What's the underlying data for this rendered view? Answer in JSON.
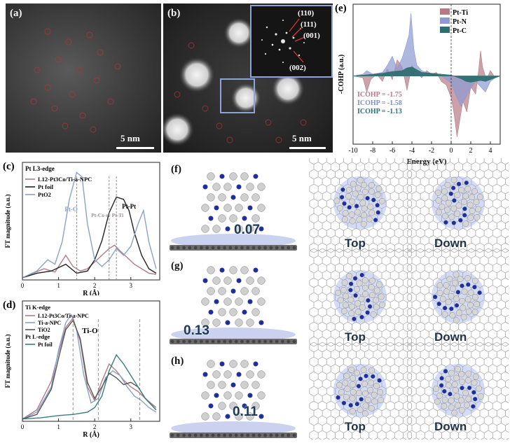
{
  "panels": {
    "a": {
      "label": "(a)",
      "scale": "5 nm"
    },
    "b": {
      "label": "(b)",
      "scale": "5 nm",
      "fft_spots": [
        "(110)",
        "(111)",
        "(001)",
        "(002)"
      ]
    },
    "c": {
      "label": "(c)"
    },
    "d": {
      "label": "(d)"
    },
    "e": {
      "label": "(e)"
    },
    "f": {
      "label": "(f)",
      "value": "0.07",
      "views": [
        "Top",
        "Down"
      ]
    },
    "g": {
      "label": "(g)",
      "value": "0.13",
      "views": [
        "Top",
        "Down"
      ]
    },
    "h": {
      "label": "(h)",
      "value": "0.11",
      "views": [
        "Top",
        "Down"
      ]
    }
  },
  "chart_data": [
    {
      "id": "e",
      "type": "area",
      "xlabel": "Energy (eV)",
      "ylabel": "-COHP (a.u.)",
      "xlim": [
        -10,
        5
      ],
      "xticks": [
        -10,
        -8,
        -6,
        -4,
        -2,
        0,
        2,
        4
      ],
      "legend": [
        {
          "name": "Pt-Ti",
          "color": "#b57a86"
        },
        {
          "name": "Pt-N",
          "color": "#8c9ad1"
        },
        {
          "name": "Pt-C",
          "color": "#2f6e70"
        }
      ],
      "legend_position": "top-right",
      "annotations": [
        "ICOHP = -1.75",
        "ICOHP = -1.58",
        "ICOHP = -1.13"
      ],
      "series": [
        {
          "name": "Pt-Ti",
          "x": [
            -10,
            -9,
            -8.6,
            -8.2,
            -7.6,
            -7,
            -6.5,
            -6,
            -5.5,
            -5,
            -4.5,
            -4,
            -3.5,
            -3,
            -2.5,
            -2,
            -1.5,
            -1,
            -0.5,
            0,
            0.3,
            0.6,
            0.9,
            1.2,
            1.6,
            2,
            2.5,
            2.8,
            3,
            3.2,
            3.6,
            4,
            4.5,
            5
          ],
          "y": [
            0,
            -0.1,
            -0.9,
            -0.2,
            0.1,
            -0.3,
            0.4,
            -0.2,
            0.9,
            0.5,
            -0.8,
            0.6,
            0.2,
            -0.1,
            0.3,
            0.1,
            0.2,
            -0.3,
            -0.5,
            -1.2,
            -2.1,
            -3.4,
            -2.4,
            -1.4,
            -2.0,
            -0.6,
            -1.0,
            0.3,
            1.4,
            0.5,
            -0.2,
            0.3,
            -0.1,
            0
          ]
        },
        {
          "name": "Pt-N",
          "x": [
            -10,
            -9,
            -8.6,
            -8,
            -7,
            -6.5,
            -6,
            -5.5,
            -5,
            -4.6,
            -4.3,
            -4.1,
            -3.8,
            -3.5,
            -3,
            -2.5,
            -2,
            -1.5,
            -1,
            -0.5,
            0,
            0.5,
            1,
            1.5,
            2,
            2.5,
            3,
            3.5,
            4,
            4.5,
            5
          ],
          "y": [
            0,
            0.1,
            0.3,
            0.1,
            0.2,
            0.6,
            1.1,
            0.4,
            1.0,
            1.7,
            2.3,
            3.5,
            1.5,
            0.6,
            0.3,
            0.2,
            0.1,
            0.1,
            0,
            -0.2,
            -0.4,
            -1.1,
            -1.7,
            -1.2,
            -0.7,
            -0.3,
            -0.6,
            -0.9,
            -0.3,
            -0.1,
            0
          ]
        },
        {
          "name": "Pt-C",
          "x": [
            -10,
            -9,
            -8,
            -7,
            -6,
            -5,
            -4.5,
            -4,
            -3.5,
            -3,
            -2,
            -1,
            0,
            0.5,
            1,
            1.5,
            2,
            2.5,
            3,
            3.5,
            4,
            4.5,
            5
          ],
          "y": [
            0,
            0.05,
            0.1,
            0.15,
            0.25,
            0.3,
            0.45,
            0.5,
            0.35,
            0.2,
            0.15,
            0.1,
            0.05,
            -0.05,
            -0.15,
            -0.3,
            -0.35,
            -0.3,
            -0.25,
            -0.3,
            -0.2,
            -0.1,
            0
          ]
        }
      ]
    },
    {
      "id": "c",
      "type": "line",
      "edge": "Pt L3-edge",
      "xlabel": "R (Å)",
      "ylabel": "FT magnitude (a.u.)",
      "xlim": [
        0,
        3.8
      ],
      "xticks": [
        0,
        1,
        2,
        3
      ],
      "legend": [
        {
          "name": "L12-Pt3Co/Ti-a-NPC",
          "color": "#b07c86"
        },
        {
          "name": "Pt foil",
          "color": "#222222"
        },
        {
          "name": "PtO2",
          "color": "#8aa2c8"
        }
      ],
      "annotations": [
        "Pt-O",
        "Pt-Co or Pt-Ti",
        "Pt-Pt"
      ],
      "series": [
        {
          "name": "L12-Pt3Co/Ti-a-NPC",
          "x": [
            0,
            0.3,
            0.6,
            0.9,
            1.2,
            1.4,
            1.6,
            1.8,
            2.0,
            2.2,
            2.4,
            2.55,
            2.7,
            2.9,
            3.1,
            3.3,
            3.5,
            3.7
          ],
          "y": [
            0.02,
            0.06,
            0.1,
            0.07,
            0.22,
            0.12,
            0.08,
            0.1,
            0.16,
            0.22,
            0.28,
            0.31,
            0.26,
            0.2,
            0.14,
            0.1,
            0.06,
            0.05
          ]
        },
        {
          "name": "Pt foil",
          "x": [
            0,
            0.4,
            0.8,
            1.2,
            1.5,
            1.8,
            2.0,
            2.2,
            2.4,
            2.6,
            2.8,
            2.95,
            3.1,
            3.3,
            3.5,
            3.7
          ],
          "y": [
            0.02,
            0.06,
            0.08,
            0.14,
            0.06,
            0.08,
            0.18,
            0.35,
            0.6,
            0.74,
            0.72,
            0.62,
            0.42,
            0.22,
            0.1,
            0.06
          ]
        },
        {
          "name": "PtO2",
          "x": [
            0,
            0.4,
            0.7,
            0.9,
            1.1,
            1.3,
            1.5,
            1.65,
            1.8,
            2.0,
            2.2,
            2.4,
            2.6,
            2.8,
            3.0,
            3.2,
            3.35,
            3.5,
            3.7
          ],
          "y": [
            0.02,
            0.08,
            0.18,
            0.14,
            0.34,
            0.72,
            0.96,
            0.92,
            0.5,
            0.18,
            0.12,
            0.18,
            0.28,
            0.22,
            0.3,
            0.5,
            0.62,
            0.34,
            0.1
          ]
        }
      ]
    },
    {
      "id": "d",
      "type": "line",
      "edge": "Ti K-edge / Pt L-edge",
      "xlabel": "R (Å)",
      "ylabel": "FT magnitude (a.u.)",
      "xlim": [
        0,
        3.8
      ],
      "xticks": [
        0,
        1,
        2,
        3
      ],
      "legend": [
        {
          "name": "L12-Pt3Co/Ti-a-NPC",
          "color": "#b07c86"
        },
        {
          "name": "Ti-a-NPC",
          "color": "#8aa2c8"
        },
        {
          "name": "TiO2",
          "color": "#555555"
        },
        {
          "name": "Pt foil",
          "color": "#3a7c7e"
        }
      ],
      "legend_groups": [
        "Ti K-edge",
        "Pt L-edge"
      ],
      "annotations": [
        "Ti-O"
      ],
      "series": [
        {
          "name": "L12-Pt3Co/Ti-a-NPC",
          "x": [
            0,
            0.4,
            0.8,
            1.0,
            1.2,
            1.4,
            1.6,
            1.8,
            2.0,
            2.2,
            2.4,
            2.6,
            2.8,
            3.0,
            3.2,
            3.4,
            3.7
          ],
          "y": [
            0.02,
            0.1,
            0.35,
            0.6,
            0.82,
            0.9,
            0.7,
            0.3,
            0.18,
            0.35,
            0.5,
            0.44,
            0.36,
            0.3,
            0.26,
            0.2,
            0.12
          ]
        },
        {
          "name": "Ti-a-NPC",
          "x": [
            0,
            0.4,
            0.8,
            1.0,
            1.2,
            1.35,
            1.5,
            1.7,
            1.9,
            2.1,
            2.3,
            2.5,
            2.7,
            2.9,
            3.1,
            3.3,
            3.5,
            3.7
          ],
          "y": [
            0.02,
            0.08,
            0.3,
            0.62,
            0.86,
            0.93,
            0.8,
            0.4,
            0.16,
            0.2,
            0.38,
            0.44,
            0.4,
            0.3,
            0.22,
            0.18,
            0.12,
            0.08
          ]
        },
        {
          "name": "TiO2",
          "x": [
            0,
            0.4,
            0.8,
            1.0,
            1.2,
            1.4,
            1.6,
            1.8,
            2.0,
            2.2,
            2.4,
            2.6,
            2.8,
            3.0,
            3.2,
            3.4,
            3.7
          ],
          "y": [
            0.02,
            0.06,
            0.28,
            0.55,
            0.8,
            0.88,
            0.72,
            0.34,
            0.2,
            0.3,
            0.42,
            0.38,
            0.32,
            0.34,
            0.3,
            0.2,
            0.1
          ]
        },
        {
          "name": "Pt foil",
          "x": [
            0,
            0.5,
            1.0,
            1.4,
            1.8,
            2.0,
            2.2,
            2.4,
            2.6,
            2.8,
            3.0,
            3.2,
            3.4,
            3.7
          ],
          "y": [
            0.02,
            0.03,
            0.05,
            0.06,
            0.08,
            0.12,
            0.22,
            0.44,
            0.58,
            0.5,
            0.4,
            0.3,
            0.2,
            0.1
          ]
        }
      ]
    }
  ]
}
